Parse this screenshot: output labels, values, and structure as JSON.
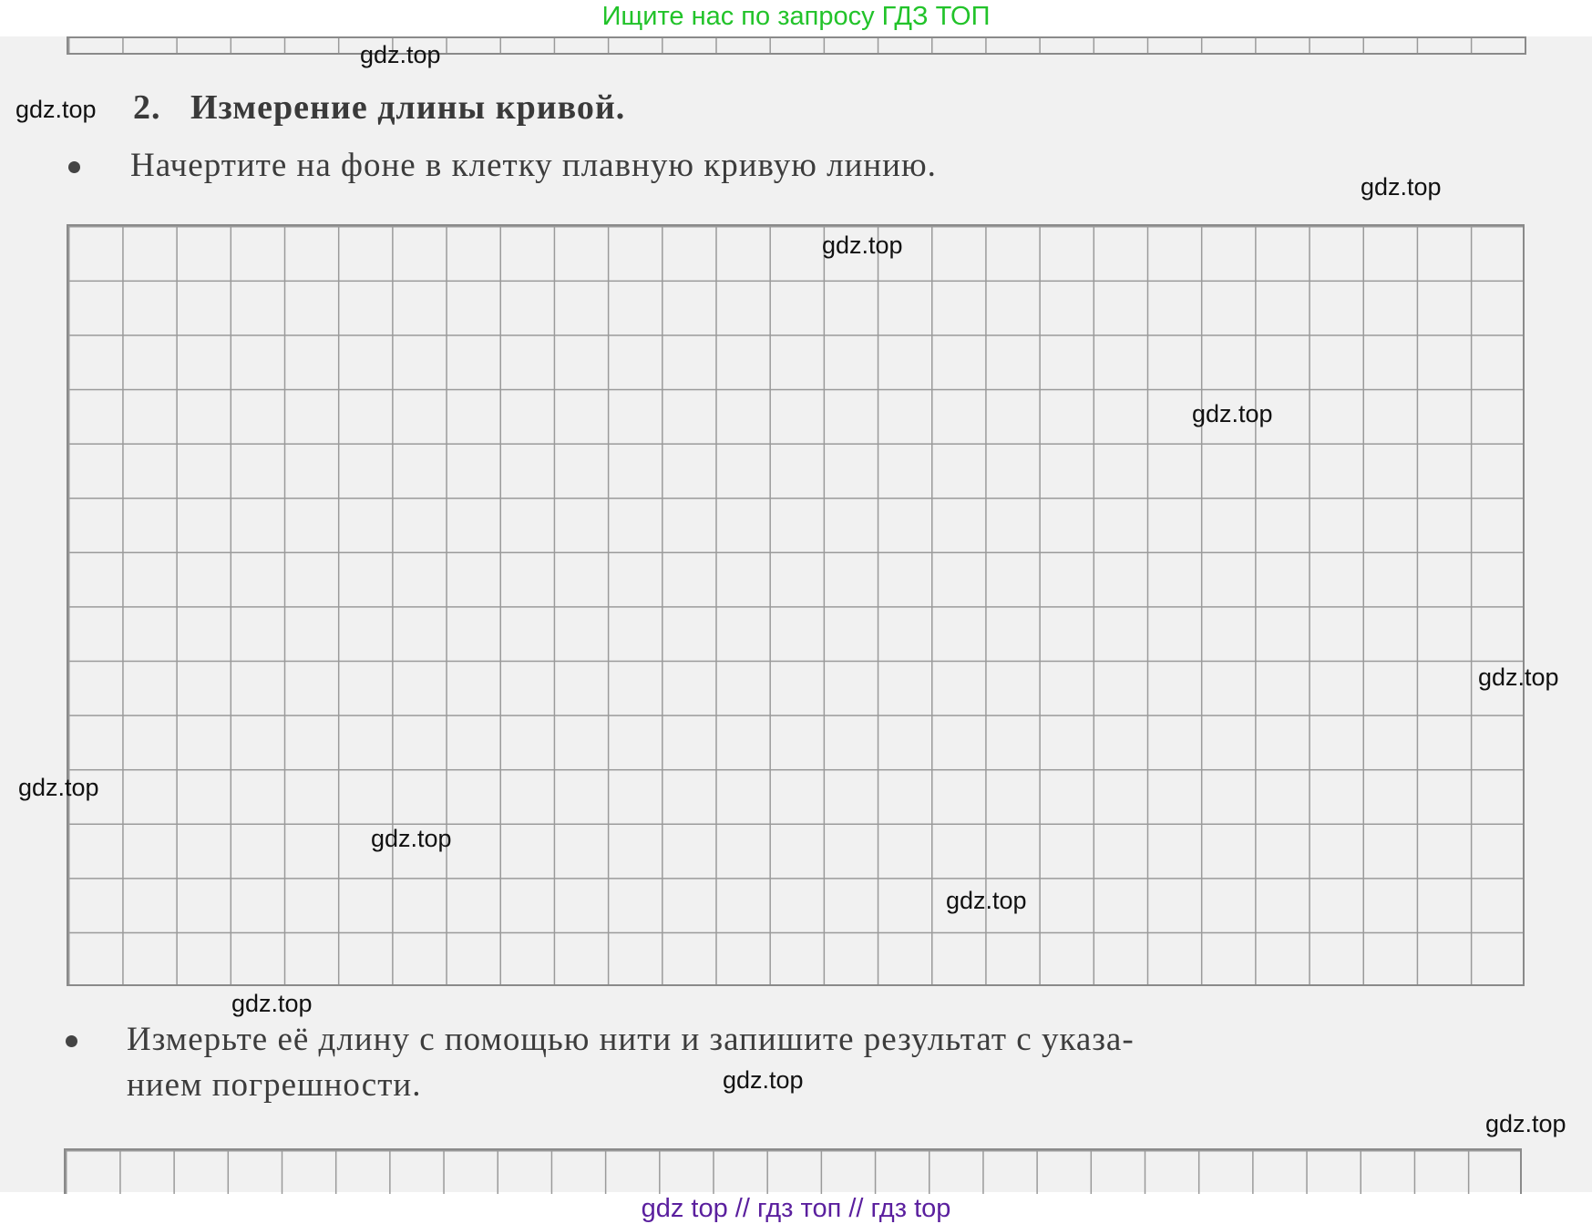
{
  "banner_top": "Ищите нас по запросу ГДЗ ТОП",
  "banner_bottom": "gdz top  //  гдз топ  //  гдз top",
  "task": {
    "number": "2.",
    "title": "Измерение длины кривой.",
    "bullet1": "Начертите на фоне в клетку плавную кривую линию.",
    "bullet2_line1": "Измерьте её длину с помощью нити и запишите результат с указа-",
    "bullet2_line2": "нием погрешности."
  },
  "watermark": "gdz.top",
  "colors": {
    "banner_top": "#22c32a",
    "banner_bottom": "#5a1f9e"
  }
}
